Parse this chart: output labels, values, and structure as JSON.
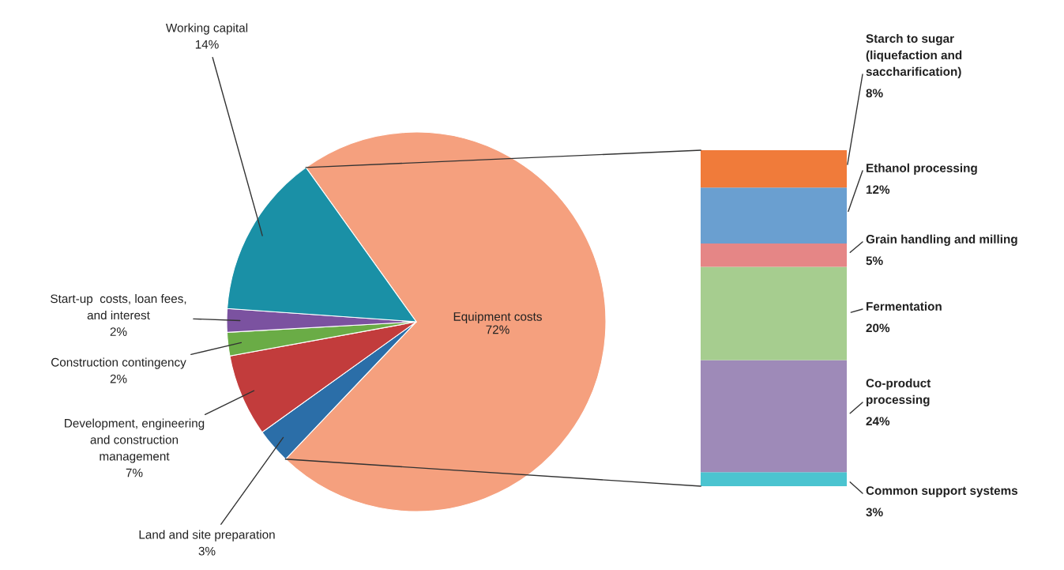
{
  "chart_data": [
    {
      "type": "pie",
      "categories": [
        "Equipment costs",
        "Land and site preparation",
        "Development, engineering\nand construction\nmanagement",
        "Construction contingency",
        "Start-up  costs, loan fees,\nand interest",
        "Working capital"
      ],
      "values": [
        72,
        3,
        7,
        2,
        2,
        14
      ],
      "value_labels": [
        "72%",
        "3%",
        "7%",
        "2%",
        "2%",
        "14%"
      ],
      "colors": [
        "#f5a07e",
        "#2b6ea8",
        "#c23c3c",
        "#6aac46",
        "#7b52a0",
        "#1a90a6"
      ]
    },
    {
      "type": "bar",
      "stacked": true,
      "categories": [
        null
      ],
      "series": [
        {
          "name": "Common support systems",
          "color": "#4bc4d0",
          "values": [
            3
          ],
          "value_labels": [
            "3%"
          ]
        },
        {
          "name": "Co-product\nprocessing",
          "color": "#9e8ab8",
          "values": [
            24
          ],
          "value_labels": [
            "24%"
          ]
        },
        {
          "name": "Fermentation",
          "color": "#a6cd8f",
          "values": [
            20
          ],
          "value_labels": [
            "20%"
          ]
        },
        {
          "name": "Grain handling and milling",
          "color": "#e58686",
          "values": [
            5
          ],
          "value_labels": [
            "5%"
          ]
        },
        {
          "name": "Ethanol processing",
          "color": "#6a9fd0",
          "values": [
            12
          ],
          "value_labels": [
            "12%"
          ]
        },
        {
          "name": "Starch to sugar\n(liquefaction and\nsaccharification)",
          "color": "#f07b3a",
          "values": [
            8
          ],
          "value_labels": [
            "8%"
          ]
        }
      ]
    }
  ]
}
